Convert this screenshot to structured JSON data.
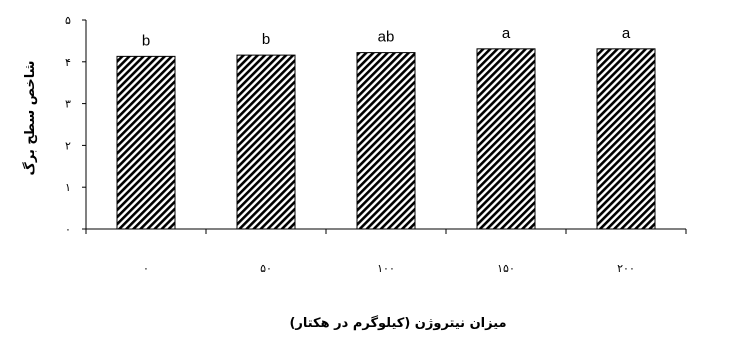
{
  "chart_data": {
    "type": "bar",
    "categories": [
      "۰",
      "۵۰",
      "۱۰۰",
      "۱۵۰",
      "۲۰۰"
    ],
    "values": [
      4.13,
      4.16,
      4.22,
      4.31,
      4.31
    ],
    "significance_letters": [
      "b",
      "b",
      "ab",
      "a",
      "a"
    ],
    "ylim": [
      0,
      5
    ],
    "yticks": [
      {
        "value": 0,
        "label": "۰"
      },
      {
        "value": 1,
        "label": "۱"
      },
      {
        "value": 2,
        "label": "۲"
      },
      {
        "value": 3,
        "label": "۳"
      },
      {
        "value": 4,
        "label": "۴"
      },
      {
        "value": 5,
        "label": "۵"
      }
    ],
    "xlabel": "میزان نیتروژن (کیلوگرم در هکتار)",
    "ylabel": "شاخص سطح برگ",
    "grid": false,
    "legend": "none",
    "bar_fill": "diagonal-hatch",
    "colors": {
      "bar_stroke": "#000000",
      "hatch": "#000000",
      "background": "#ffffff"
    }
  }
}
